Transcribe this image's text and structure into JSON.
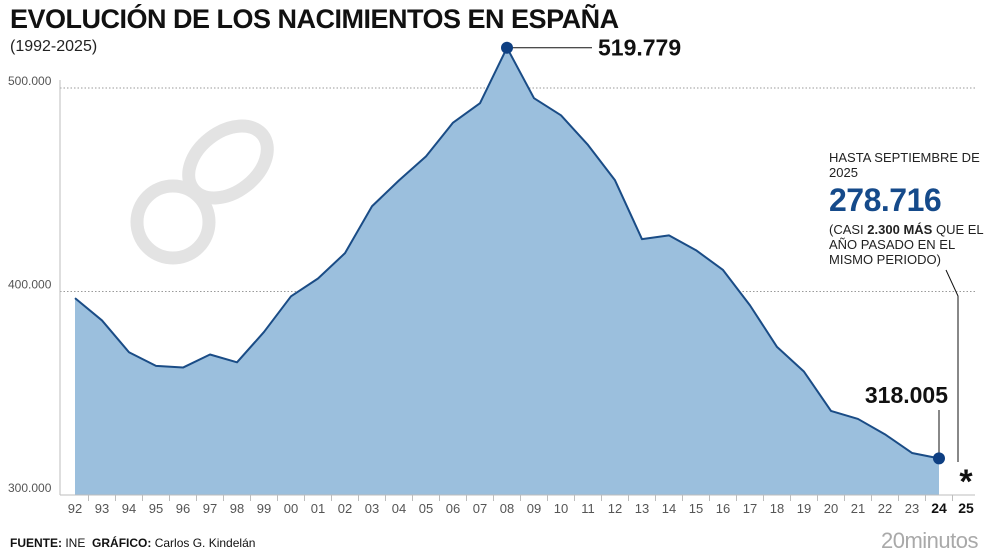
{
  "title": "EVOLUCIÓN DE LOS NACIMIENTOS EN ESPAÑA",
  "subtitle": "(1992-2025)",
  "note": {
    "line1": "HASTA SEPTIEMBRE DE 2025",
    "value": "278.716",
    "pre": "(CASI ",
    "bold": "2.300 MÁS",
    "post": " QUE EL AÑO PASADO EN EL MISMO PERIODO)"
  },
  "footer": {
    "source_label": "FUENTE:",
    "source": "INE",
    "graphic_label": "GRÁFICO:",
    "graphic": "Carlos G. Kindelán"
  },
  "brand": "20minutos",
  "colors": {
    "area": "#9bbfdd",
    "line": "#1a4c86",
    "dot": "#0e3f82",
    "note_value": "#154a8a"
  },
  "chart_data": {
    "type": "area",
    "x": [
      "92",
      "93",
      "94",
      "95",
      "96",
      "97",
      "98",
      "99",
      "00",
      "01",
      "02",
      "03",
      "04",
      "05",
      "06",
      "07",
      "08",
      "09",
      "10",
      "11",
      "12",
      "13",
      "14",
      "15",
      "16",
      "17",
      "18",
      "19",
      "20",
      "21",
      "22",
      "23",
      "24",
      "25"
    ],
    "values": [
      396747,
      385786,
      370148,
      363469,
      362626,
      369035,
      365193,
      380130,
      397632,
      406380,
      418846,
      441881,
      454591,
      466371,
      482957,
      492527,
      519779,
      494997,
      486575,
      471999,
      454648,
      425715,
      427595,
      420290,
      410583,
      393181,
      372777,
      360617,
      341315,
      337380,
      329812,
      320656,
      318005,
      null
    ],
    "highlight_labels": [
      "24",
      "25"
    ],
    "ylim": [
      300000,
      520000
    ],
    "yticks": [
      300000,
      400000,
      500000
    ],
    "ytick_labels": [
      "300.000",
      "400.000",
      "500.000"
    ],
    "grid": true,
    "annotations": [
      {
        "x": "08",
        "label": "519.779"
      },
      {
        "x": "24",
        "label": "318.005"
      },
      {
        "x": "25",
        "label": "*"
      }
    ]
  }
}
